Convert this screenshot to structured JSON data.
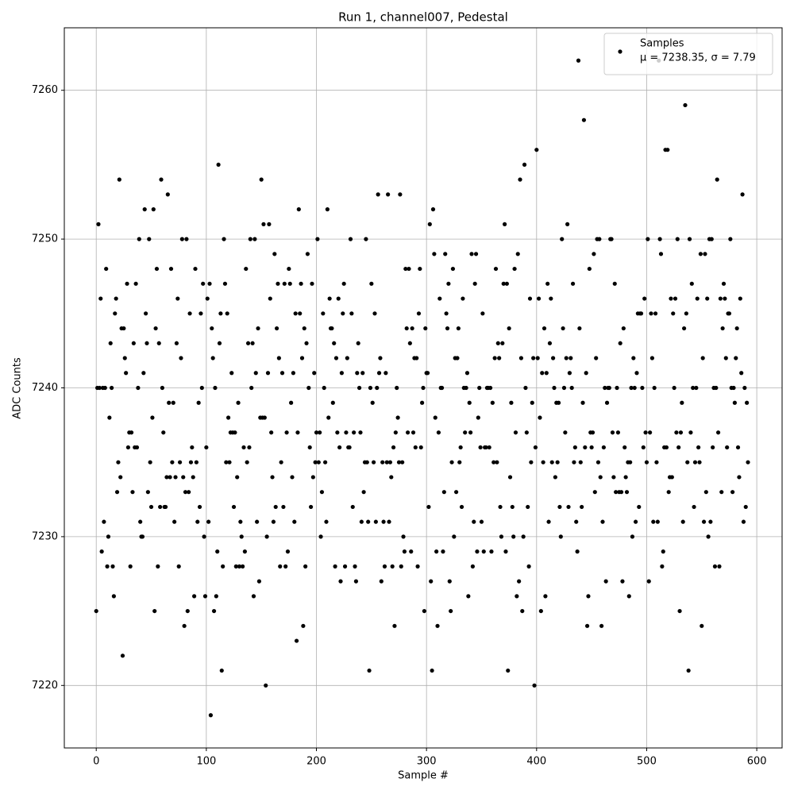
{
  "chart_data": {
    "type": "scatter",
    "title": "Run 1, channel007, Pedestal",
    "xlabel": "Sample #",
    "ylabel": "ADC Counts",
    "xlim": [
      -29,
      623
    ],
    "ylim": [
      7215.8,
      7264.2
    ],
    "xticks": [
      0,
      100,
      200,
      300,
      400,
      500,
      600
    ],
    "yticks": [
      7220,
      7230,
      7240,
      7250,
      7260
    ],
    "grid": true,
    "legend": "upper right",
    "series": [
      {
        "name": "Samples",
        "label": "μ = 7238.35, σ = 7.79",
        "color": "#000000",
        "x": [
          0,
          1,
          2,
          3,
          4,
          5,
          6,
          7,
          8,
          9,
          10,
          11,
          12,
          13,
          14,
          15,
          16,
          17,
          18,
          19,
          20,
          21,
          22,
          23,
          24,
          25,
          26,
          27,
          28,
          29,
          30,
          31,
          32,
          33,
          34,
          35,
          36,
          37,
          38,
          39,
          40,
          41,
          42,
          43,
          44,
          45,
          46,
          47,
          48,
          49,
          50,
          51,
          52,
          53,
          54,
          55,
          56,
          57,
          58,
          59,
          60,
          61,
          62,
          63,
          64,
          65,
          66,
          67,
          68,
          69,
          70,
          71,
          72,
          73,
          74,
          75,
          76,
          77,
          78,
          79,
          80,
          81,
          82,
          83,
          84,
          85,
          86,
          87,
          88,
          89,
          90,
          91,
          92,
          93,
          94,
          95,
          96,
          97,
          98,
          99,
          100,
          101,
          102,
          103,
          104,
          105,
          106,
          107,
          108,
          109,
          110,
          111,
          112,
          113,
          114,
          115,
          116,
          117,
          118,
          119,
          120,
          121,
          122,
          123,
          124,
          125,
          126,
          127,
          128,
          129,
          130,
          131,
          132,
          133,
          134,
          135,
          136,
          137,
          138,
          139,
          140,
          141,
          142,
          143,
          144,
          145,
          146,
          147,
          148,
          149,
          150,
          151,
          152,
          153,
          154,
          155,
          156,
          157,
          158,
          159,
          160,
          161,
          162,
          163,
          164,
          165,
          166,
          167,
          168,
          169,
          170,
          171,
          172,
          173,
          174,
          175,
          176,
          177,
          178,
          179,
          180,
          181,
          182,
          183,
          184,
          185,
          186,
          187,
          188,
          189,
          190,
          191,
          192,
          193,
          194,
          195,
          196,
          197,
          198,
          199,
          200,
          201,
          202,
          203,
          204,
          205,
          206,
          207,
          208,
          209,
          210,
          211,
          212,
          213,
          214,
          215,
          216,
          217,
          218,
          219,
          220,
          221,
          222,
          223,
          224,
          225,
          226,
          227,
          228,
          229,
          230,
          231,
          232,
          233,
          234,
          235,
          236,
          237,
          238,
          239,
          240,
          241,
          242,
          243,
          244,
          245,
          246,
          247,
          248,
          249,
          250,
          251,
          252,
          253,
          254,
          255,
          256,
          257,
          258,
          259,
          260,
          261,
          262,
          263,
          264,
          265,
          266,
          267,
          268,
          269,
          270,
          271,
          272,
          273,
          274,
          275,
          276,
          277,
          278,
          279,
          280,
          281,
          282,
          283,
          284,
          285,
          286,
          287,
          288,
          289,
          290,
          291,
          292,
          293,
          294,
          295,
          296,
          297,
          298,
          299,
          300,
          301,
          302,
          303,
          304,
          305,
          306,
          307,
          308,
          309,
          310,
          311,
          312,
          313,
          314,
          315,
          316,
          317,
          318,
          319,
          320,
          321,
          322,
          323,
          324,
          325,
          326,
          327,
          328,
          329,
          330,
          331,
          332,
          333,
          334,
          335,
          336,
          337,
          338,
          339,
          340,
          341,
          342,
          343,
          344,
          345,
          346,
          347,
          348,
          349,
          350,
          351,
          352,
          353,
          354,
          355,
          356,
          357,
          358,
          359,
          360,
          361,
          362,
          363,
          364,
          365,
          366,
          367,
          368,
          369,
          370,
          371,
          372,
          373,
          374,
          375,
          376,
          377,
          378,
          379,
          380,
          381,
          382,
          383,
          384,
          385,
          386,
          387,
          388,
          389,
          390,
          391,
          392,
          393,
          394,
          395,
          396,
          397,
          398,
          399,
          400,
          401,
          402,
          403,
          404,
          405,
          406,
          407,
          408,
          409,
          410,
          411,
          412,
          413,
          414,
          415,
          416,
          417,
          418,
          419,
          420,
          421,
          422,
          423,
          424,
          425,
          426,
          427,
          428,
          429,
          430,
          431,
          432,
          433,
          434,
          435,
          436,
          437,
          438,
          439,
          440,
          441,
          442,
          443,
          444,
          445,
          446,
          447,
          448,
          449,
          450,
          451,
          452,
          453,
          454,
          455,
          456,
          457,
          458,
          459,
          460,
          461,
          462,
          463,
          464,
          465,
          466,
          467,
          468,
          469,
          470,
          471,
          472,
          473,
          474,
          475,
          476,
          477,
          478,
          479,
          480,
          481,
          482,
          483,
          484,
          485,
          486,
          487,
          488,
          489,
          490,
          491,
          492,
          493,
          494,
          495,
          496,
          497,
          498,
          499,
          500,
          501,
          502,
          503,
          504,
          505,
          506,
          507,
          508,
          509,
          510,
          511,
          512,
          513,
          514,
          515,
          516,
          517,
          518,
          519,
          520,
          521,
          522,
          523,
          524,
          525,
          526,
          527,
          528,
          529,
          530,
          531,
          532,
          533,
          534,
          535,
          536,
          537,
          538,
          539,
          540,
          541,
          542,
          543,
          544,
          545,
          546,
          547,
          548,
          549,
          550,
          551,
          552,
          553,
          554,
          555,
          556,
          557,
          558,
          559,
          560,
          561,
          562,
          563,
          564,
          565,
          566,
          567,
          568,
          569,
          570,
          571,
          572,
          573,
          574,
          575,
          576,
          577,
          578,
          579,
          580,
          581,
          582,
          583,
          584,
          585,
          586,
          587,
          588,
          589,
          590,
          591,
          592
        ],
        "values": [
          7225,
          7240,
          7251,
          7240,
          7246,
          7229,
          7240,
          7231,
          7240,
          7248,
          7228,
          7230,
          7238,
          7243,
          7240,
          7228,
          7226,
          7245,
          7246,
          7233,
          7235,
          7254,
          7234,
          7244,
          7222,
          7244,
          7242,
          7241,
          7247,
          7236,
          7237,
          7228,
          7237,
          7233,
          7243,
          7236,
          7247,
          7236,
          7240,
          7250,
          7231,
          7230,
          7230,
          7241,
          7252,
          7245,
          7243,
          7233,
          7250,
          7235,
          7232,
          7238,
          7252,
          7225,
          7244,
          7248,
          7228,
          7243,
          7232,
          7254,
          7240,
          7237,
          7232,
          7232,
          7234,
          7253,
          7239,
          7234,
          7248,
          7235,
          7239,
          7231,
          7234,
          7243,
          7246,
          7228,
          7235,
          7242,
          7250,
          7234,
          7224,
          7233,
          7250,
          7225,
          7233,
          7245,
          7235,
          7236,
          7234,
          7226,
          7248,
          7235,
          7231,
          7239,
          7232,
          7245,
          7240,
          7247,
          7230,
          7226,
          7236,
          7246,
          7231,
          7247,
          7218,
          7244,
          7242,
          7225,
          7240,
          7226,
          7229,
          7255,
          7243,
          7245,
          7221,
          7228,
          7250,
          7247,
          7235,
          7245,
          7238,
          7235,
          7237,
          7241,
          7237,
          7232,
          7237,
          7228,
          7234,
          7239,
          7228,
          7231,
          7230,
          7228,
          7236,
          7229,
          7248,
          7235,
          7243,
          7236,
          7250,
          7240,
          7243,
          7226,
          7250,
          7241,
          7231,
          7244,
          7227,
          7238,
          7254,
          7238,
          7251,
          7238,
          7220,
          7230,
          7241,
          7251,
          7246,
          7237,
          7234,
          7231,
          7249,
          7232,
          7244,
          7247,
          7242,
          7228,
          7235,
          7241,
          7232,
          7247,
          7228,
          7237,
          7229,
          7248,
          7247,
          7239,
          7234,
          7241,
          7231,
          7245,
          7223,
          7237,
          7252,
          7245,
          7247,
          7242,
          7224,
          7244,
          7228,
          7243,
          7249,
          7240,
          7236,
          7232,
          7247,
          7234,
          7241,
          7235,
          7237,
          7250,
          7235,
          7237,
          7230,
          7233,
          7245,
          7240,
          7235,
          7231,
          7252,
          7238,
          7246,
          7244,
          7244,
          7239,
          7243,
          7228,
          7242,
          7237,
          7246,
          7236,
          7227,
          7241,
          7245,
          7247,
          7228,
          7237,
          7242,
          7236,
          7236,
          7250,
          7245,
          7232,
          7237,
          7228,
          7227,
          7241,
          7243,
          7240,
          7237,
          7231,
          7241,
          7233,
          7235,
          7250,
          7235,
          7231,
          7221,
          7240,
          7247,
          7239,
          7235,
          7245,
          7231,
          7240,
          7253,
          7241,
          7242,
          7227,
          7235,
          7231,
          7228,
          7241,
          7235,
          7253,
          7231,
          7235,
          7234,
          7228,
          7236,
          7224,
          7237,
          7240,
          7238,
          7235,
          7253,
          7228,
          7235,
          7230,
          7229,
          7248,
          7244,
          7237,
          7248,
          7243,
          7229,
          7244,
          7237,
          7242,
          7236,
          7242,
          7228,
          7245,
          7248,
          7236,
          7239,
          7240,
          7225,
          7244,
          7241,
          7241,
          7232,
          7251,
          7227,
          7221,
          7252,
          7249,
          7238,
          7229,
          7224,
          7237,
          7246,
          7240,
          7240,
          7229,
          7233,
          7249,
          7245,
          7244,
          7247,
          7227,
          7225,
          7235,
          7248,
          7230,
          7242,
          7233,
          7242,
          7244,
          7235,
          7236,
          7232,
          7246,
          7240,
          7237,
          7240,
          7241,
          7226,
          7239,
          7237,
          7249,
          7228,
          7231,
          7247,
          7249,
          7229,
          7238,
          7240,
          7236,
          7231,
          7245,
          7229,
          7236,
          7236,
          7240,
          7240,
          7236,
          7240,
          7229,
          7239,
          7235,
          7242,
          7248,
          7235,
          7243,
          7242,
          7232,
          7230,
          7243,
          7247,
          7251,
          7229,
          7247,
          7221,
          7244,
          7234,
          7239,
          7232,
          7230,
          7248,
          7237,
          7226,
          7249,
          7227,
          7254,
          7242,
          7225,
          7230,
          7255,
          7240,
          7237,
          7232,
          7228,
          7246,
          7235,
          7239,
          7242,
          7220,
          7236,
          7256,
          7242,
          7246,
          7238,
          7225,
          7241,
          7235,
          7244,
          7226,
          7241,
          7247,
          7231,
          7243,
          7246,
          7235,
          7242,
          7240,
          7234,
          7239,
          7235,
          7239,
          7232,
          7230,
          7250,
          7244,
          7240,
          7237,
          7242,
          7251,
          7232,
          7241,
          7242,
          7240,
          7247,
          7235,
          7236,
          7231,
          7229,
          7262,
          7244,
          7235,
          7232,
          7239,
          7258,
          7236,
          7241,
          7224,
          7226,
          7248,
          7237,
          7236,
          7237,
          7249,
          7233,
          7242,
          7250,
          7235,
          7250,
          7234,
          7224,
          7231,
          7236,
          7240,
          7227,
          7239,
          7240,
          7240,
          7250,
          7250,
          7237,
          7234,
          7247,
          7233,
          7240,
          7237,
          7233,
          7243,
          7233,
          7227,
          7244,
          7236,
          7234,
          7233,
          7235,
          7226,
          7235,
          7240,
          7230,
          7242,
          7240,
          7231,
          7241,
          7245,
          7232,
          7245,
          7245,
          7240,
          7236,
          7246,
          7237,
          7235,
          7250,
          7227,
          7237,
          7245,
          7242,
          7231,
          7240,
          7245,
          7235,
          7231,
          7262,
          7250,
          7249,
          7228,
          7229,
          7236,
          7256,
          7236,
          7256,
          7233,
          7234,
          7246,
          7234,
          7245,
          7240,
          7246,
          7237,
          7250,
          7236,
          7225,
          7237,
          7239,
          7231,
          7244,
          7259,
          7245,
          7235,
          7221,
          7250,
          7237,
          7247,
          7240,
          7232,
          7235,
          7240,
          7246,
          7236,
          7235,
          7249,
          7224,
          7242,
          7231,
          7249,
          7233,
          7246,
          7230,
          7250,
          7231,
          7250,
          7236,
          7240,
          7228,
          7240,
          7254,
          7237,
          7228,
          7246,
          7233,
          7244,
          7247,
          7246,
          7242,
          7236,
          7245,
          7245,
          7250,
          7240,
          7233,
          7240,
          7239,
          7242,
          7244,
          7236,
          7234,
          7246,
          7241,
          7253,
          7231,
          7240,
          7232,
          7239,
          7235
        ]
      }
    ]
  }
}
